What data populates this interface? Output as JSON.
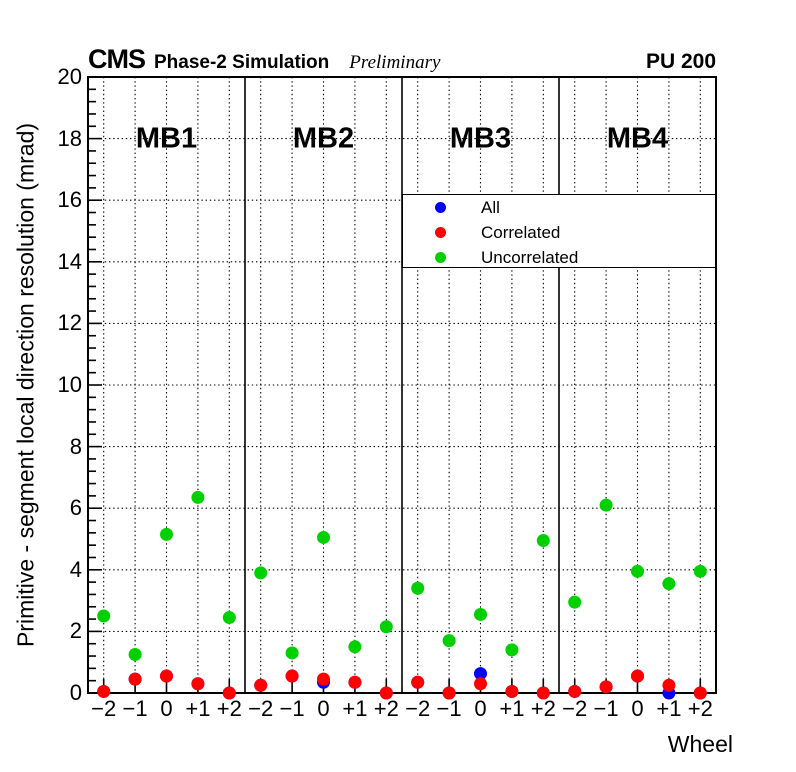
{
  "header": {
    "experiment": "CMS",
    "label": "Phase-2 Simulation",
    "sublabel": "Preliminary",
    "pileup": "PU 200"
  },
  "chart_data": {
    "type": "scatter",
    "xlabel": "Wheel",
    "ylabel": "Primitive - segment local direction resolution (mrad)",
    "ylim": [
      0,
      20
    ],
    "y_major_ticks": [
      0,
      2,
      4,
      6,
      8,
      10,
      12,
      14,
      16,
      18,
      20
    ],
    "y_minor_step": 0.4,
    "grid": "dotted",
    "legend_position": "top-right",
    "categories": [
      "−2",
      "−1",
      "0",
      "+1",
      "+2"
    ],
    "panels": [
      {
        "label": "MB1"
      },
      {
        "label": "MB2"
      },
      {
        "label": "MB3"
      },
      {
        "label": "MB4"
      }
    ],
    "series": [
      {
        "name": "All",
        "color": "#0000ff",
        "marker": "circle",
        "values_by_panel": [
          [
            0.05,
            0.45,
            0.55,
            0.3,
            0.0
          ],
          [
            0.25,
            0.55,
            0.35,
            0.35,
            0.0
          ],
          [
            0.35,
            0.0,
            0.63,
            0.05,
            0.0
          ],
          [
            0.05,
            0.2,
            0.55,
            0.0,
            0.0
          ]
        ]
      },
      {
        "name": "Correlated",
        "color": "#ff0000",
        "marker": "circle",
        "values_by_panel": [
          [
            0.05,
            0.45,
            0.55,
            0.3,
            0.0
          ],
          [
            0.25,
            0.55,
            0.45,
            0.35,
            0.0
          ],
          [
            0.35,
            0.0,
            0.3,
            0.05,
            0.0
          ],
          [
            0.05,
            0.2,
            0.55,
            0.25,
            0.0
          ]
        ]
      },
      {
        "name": "Uncorrelated",
        "color": "#00d000",
        "marker": "circle",
        "values_by_panel": [
          [
            2.5,
            1.25,
            5.15,
            6.35,
            2.45
          ],
          [
            3.9,
            1.3,
            5.05,
            1.5,
            2.15
          ],
          [
            3.4,
            1.7,
            2.55,
            1.4,
            4.95
          ],
          [
            2.95,
            6.1,
            3.95,
            3.55,
            3.95
          ]
        ]
      }
    ]
  }
}
